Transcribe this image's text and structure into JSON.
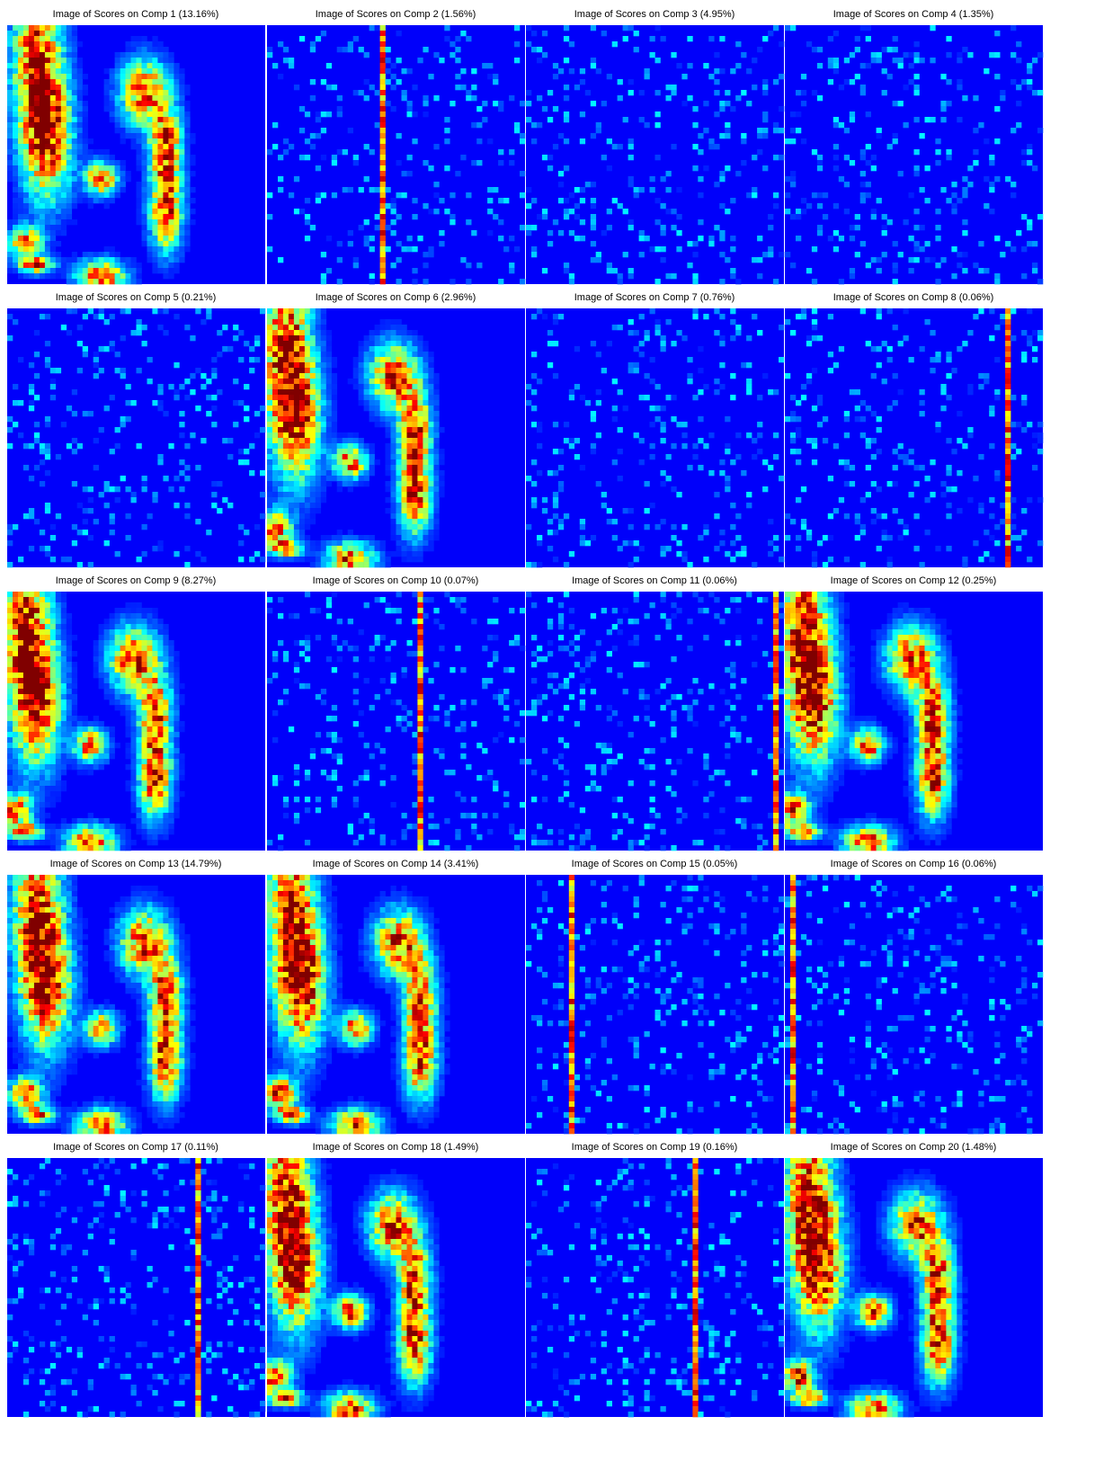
{
  "panels": [
    {
      "title": "Image of Scores on Comp 1 (13.16%)"
    },
    {
      "title": "Image of Scores on Comp 2 (1.56%)"
    },
    {
      "title": "Image of Scores on Comp 3 (4.95%)"
    },
    {
      "title": "Image of Scores on Comp 4 (1.35%)"
    },
    {
      "title": "Image of Scores on Comp 5 (0.21%)"
    },
    {
      "title": "Image of Scores on Comp 6 (2.96%)"
    },
    {
      "title": "Image of Scores on Comp 7 (0.76%)"
    },
    {
      "title": "Image of Scores on Comp 8 (0.06%)"
    },
    {
      "title": "Image of Scores on Comp 9 (8.27%)"
    },
    {
      "title": "Image of Scores on Comp 10 (0.07%)"
    },
    {
      "title": "Image of Scores on Comp 11 (0.06%)"
    },
    {
      "title": "Image of Scores on Comp 12 (0.25%)"
    },
    {
      "title": "Image of Scores on Comp 13 (14.79%)"
    },
    {
      "title": "Image of Scores on Comp 14 (3.41%)"
    },
    {
      "title": "Image of Scores on Comp 15 (0.05%)"
    },
    {
      "title": "Image of Scores on Comp 16 (0.06%)"
    },
    {
      "title": "Image of Scores on Comp 17 (0.11%)"
    },
    {
      "title": "Image of Scores on Comp 18 (1.49%)"
    },
    {
      "title": "Image of Scores on Comp 19 (0.16%)"
    },
    {
      "title": "Image of Scores on Comp 20 (1.48%)"
    }
  ]
}
